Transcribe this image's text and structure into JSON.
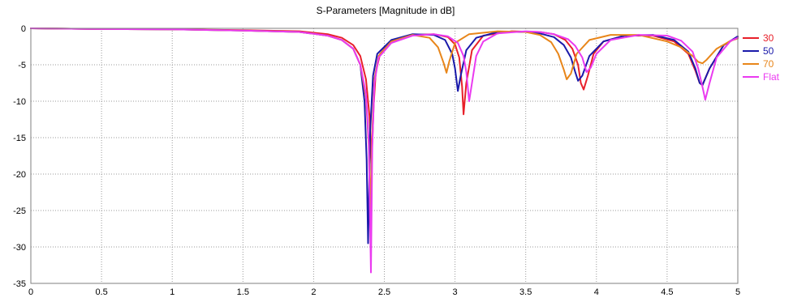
{
  "chart_data": {
    "type": "line",
    "title": "S-Parameters [Magnitude in dB]",
    "xlabel": "",
    "ylabel": "",
    "xlim": [
      0,
      5
    ],
    "ylim": [
      -35,
      0
    ],
    "x_ticks": [
      "0",
      "0.5",
      "1",
      "1.5",
      "2",
      "2.5",
      "3",
      "3.5",
      "4",
      "4.5",
      "5"
    ],
    "y_ticks": [
      "0",
      "-5",
      "-10",
      "-15",
      "-20",
      "-25",
      "-30",
      "-35"
    ],
    "grid": true,
    "legend_position": "right",
    "series": [
      {
        "name": "30",
        "color": "#e8202a",
        "x": [
          0,
          0.5,
          1,
          1.5,
          1.9,
          2.1,
          2.2,
          2.28,
          2.33,
          2.37,
          2.395,
          2.41,
          2.425,
          2.44,
          2.47,
          2.55,
          2.7,
          2.85,
          2.95,
          3.0,
          3.03,
          3.05,
          3.06,
          3.08,
          3.12,
          3.2,
          3.4,
          3.6,
          3.7,
          3.78,
          3.83,
          3.87,
          3.89,
          3.91,
          3.94,
          3.98,
          4.05,
          4.2,
          4.4,
          4.55,
          4.65,
          4.7,
          4.73,
          4.75,
          4.8,
          4.9,
          5.0
        ],
        "y": [
          0,
          -0.1,
          -0.15,
          -0.25,
          -0.4,
          -0.8,
          -1.3,
          -2.3,
          -3.8,
          -7.0,
          -12.0,
          -18.5,
          -10.5,
          -6.0,
          -3.5,
          -1.8,
          -0.9,
          -0.8,
          -1.2,
          -2.2,
          -4.0,
          -8.0,
          -11.8,
          -7.5,
          -3.0,
          -1.0,
          -0.4,
          -0.5,
          -0.8,
          -1.6,
          -2.8,
          -5.0,
          -7.5,
          -8.4,
          -6.5,
          -3.5,
          -1.8,
          -1.0,
          -1.0,
          -1.8,
          -3.5,
          -5.8,
          -7.5,
          -7.8,
          -5.5,
          -2.3,
          -1.2
        ]
      },
      {
        "name": "50",
        "color": "#1a1aaa",
        "x": [
          0,
          0.5,
          1,
          1.5,
          1.9,
          2.1,
          2.2,
          2.28,
          2.33,
          2.36,
          2.375,
          2.385,
          2.4,
          2.42,
          2.45,
          2.55,
          2.7,
          2.85,
          2.93,
          2.98,
          3.0,
          3.02,
          3.04,
          3.08,
          3.15,
          3.3,
          3.5,
          3.6,
          3.7,
          3.77,
          3.82,
          3.85,
          3.87,
          3.9,
          3.95,
          4.05,
          4.2,
          4.4,
          4.55,
          4.65,
          4.7,
          4.73,
          4.75,
          4.8,
          4.9,
          5.0
        ],
        "y": [
          0,
          -0.1,
          -0.15,
          -0.3,
          -0.5,
          -1.0,
          -1.6,
          -2.8,
          -5.0,
          -10.0,
          -18.0,
          -29.5,
          -14.0,
          -6.5,
          -3.5,
          -1.6,
          -0.8,
          -0.9,
          -1.6,
          -3.5,
          -5.5,
          -8.6,
          -6.5,
          -3.0,
          -1.3,
          -0.5,
          -0.5,
          -0.7,
          -1.2,
          -2.3,
          -4.0,
          -6.0,
          -7.2,
          -6.5,
          -3.8,
          -1.8,
          -1.0,
          -0.9,
          -1.6,
          -3.2,
          -5.5,
          -7.5,
          -7.8,
          -5.5,
          -2.3,
          -1.1
        ]
      },
      {
        "name": "70",
        "color": "#e8861a",
        "x": [
          0,
          0.5,
          1,
          1.5,
          1.9,
          2.1,
          2.2,
          2.28,
          2.33,
          2.37,
          2.39,
          2.4,
          2.415,
          2.43,
          2.46,
          2.55,
          2.7,
          2.82,
          2.88,
          2.92,
          2.94,
          2.96,
          3.0,
          3.1,
          3.3,
          3.5,
          3.6,
          3.68,
          3.73,
          3.77,
          3.79,
          3.82,
          3.86,
          3.95,
          4.1,
          4.3,
          4.5,
          4.6,
          4.68,
          4.72,
          4.75,
          4.78,
          4.85,
          4.95,
          5.0
        ],
        "y": [
          0,
          -0.1,
          -0.15,
          -0.3,
          -0.5,
          -1.0,
          -1.6,
          -2.8,
          -5.0,
          -9.5,
          -16.0,
          -25.5,
          -14.0,
          -7.0,
          -3.8,
          -1.8,
          -0.9,
          -1.3,
          -2.6,
          -4.8,
          -6.1,
          -4.5,
          -2.0,
          -0.8,
          -0.4,
          -0.5,
          -0.9,
          -1.9,
          -3.5,
          -5.7,
          -7.0,
          -6.2,
          -3.5,
          -1.6,
          -0.9,
          -0.9,
          -1.8,
          -2.6,
          -3.8,
          -4.6,
          -4.8,
          -4.3,
          -2.8,
          -1.7,
          -1.4
        ]
      },
      {
        "name": "Flat",
        "color": "#ea3af0",
        "x": [
          0,
          0.5,
          1,
          1.5,
          1.9,
          2.1,
          2.2,
          2.28,
          2.33,
          2.37,
          2.39,
          2.405,
          2.415,
          2.43,
          2.46,
          2.55,
          2.7,
          2.85,
          2.95,
          3.02,
          3.06,
          3.08,
          3.1,
          3.12,
          3.15,
          3.2,
          3.3,
          3.5,
          3.6,
          3.7,
          3.8,
          3.85,
          3.9,
          3.93,
          3.96,
          4.0,
          4.1,
          4.3,
          4.5,
          4.6,
          4.68,
          4.72,
          4.75,
          4.77,
          4.8,
          4.85,
          4.95,
          5.0
        ],
        "y": [
          0,
          -0.1,
          -0.15,
          -0.3,
          -0.5,
          -1.0,
          -1.6,
          -2.8,
          -5.0,
          -9.0,
          -15.5,
          -33.5,
          -16.0,
          -7.5,
          -4.0,
          -2.0,
          -1.0,
          -0.8,
          -1.1,
          -2.0,
          -3.8,
          -6.0,
          -10.0,
          -7.5,
          -3.8,
          -1.8,
          -0.7,
          -0.4,
          -0.5,
          -0.8,
          -1.5,
          -2.4,
          -4.0,
          -6.0,
          -5.4,
          -3.5,
          -1.6,
          -0.9,
          -1.0,
          -1.7,
          -3.2,
          -5.5,
          -8.0,
          -9.8,
          -7.5,
          -4.0,
          -1.7,
          -1.3
        ]
      }
    ]
  }
}
